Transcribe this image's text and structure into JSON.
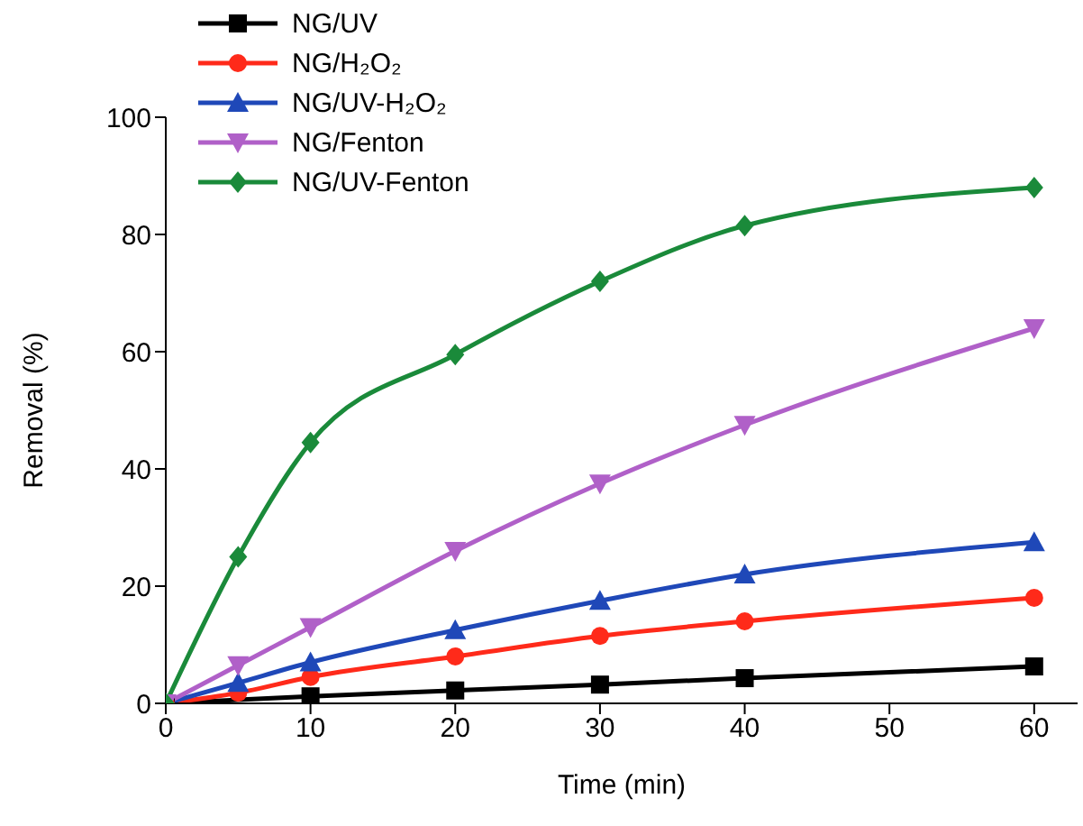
{
  "chart_data": {
    "type": "line",
    "xlabel": "Time (min)",
    "ylabel": "Removal (%)",
    "x": [
      0,
      5,
      10,
      20,
      30,
      40,
      60
    ],
    "series": [
      {
        "name": "NG/UV",
        "color": "#000000",
        "marker": "square",
        "values": [
          0,
          null,
          1.2,
          2.2,
          3.2,
          4.3,
          6.3
        ]
      },
      {
        "name": "NG/H₂O₂",
        "color": "#ff2a1a",
        "marker": "circle",
        "values": [
          0,
          1.8,
          4.5,
          8,
          11.5,
          14,
          18
        ]
      },
      {
        "name": "NG/UV-H₂O₂",
        "color": "#1f48b8",
        "marker": "triangle",
        "values": [
          0,
          3.5,
          7,
          12.5,
          17.5,
          22,
          27.5
        ]
      },
      {
        "name": "NG/Fenton",
        "color": "#b060c8",
        "marker": "triangle-down",
        "values": [
          0,
          6.5,
          13,
          26,
          37.5,
          47.5,
          64
        ]
      },
      {
        "name": "NG/UV-Fenton",
        "color": "#1a8a3a",
        "marker": "diamond",
        "values": [
          0,
          25,
          44.5,
          59.5,
          72,
          81.5,
          88
        ]
      }
    ],
    "xlim": [
      0,
      63
    ],
    "ylim": [
      0,
      100
    ],
    "xticks": [
      0,
      10,
      20,
      30,
      40,
      50,
      60
    ],
    "yticks": [
      0,
      20,
      40,
      60,
      80,
      100
    ],
    "grid": false,
    "legend": "top left",
    "line_style": "solid"
  }
}
